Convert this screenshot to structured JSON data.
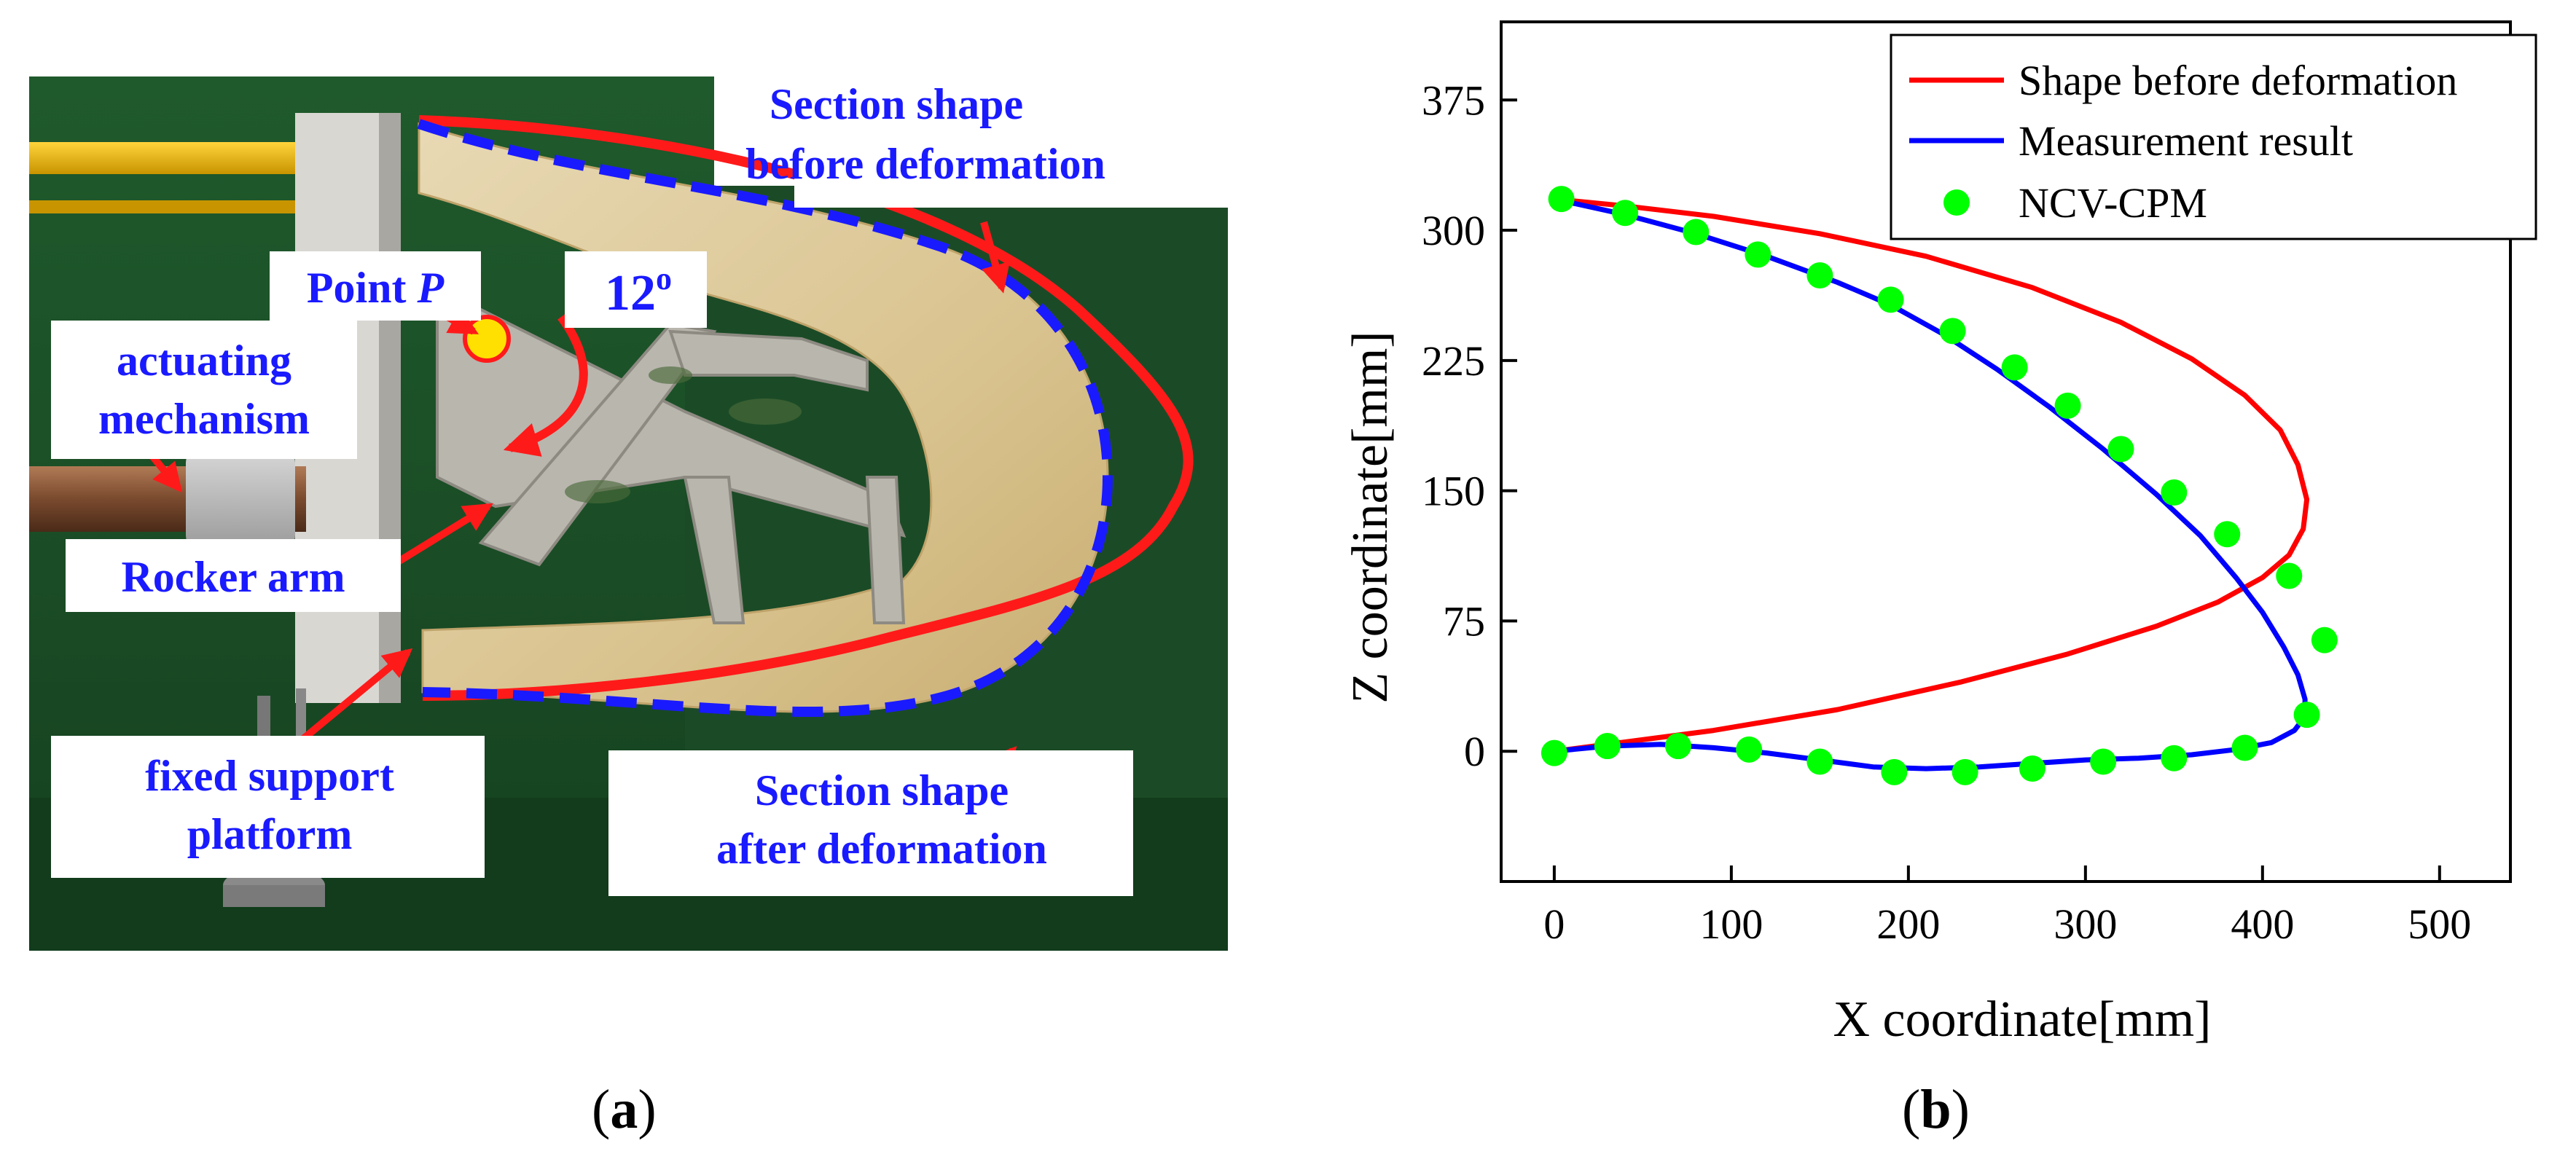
{
  "panel_a": {
    "labels": {
      "section_before": [
        "Section shape",
        "before deformation"
      ],
      "section_after": [
        "Section shape",
        "after deformation"
      ],
      "point_p_prefix": "Point ",
      "point_p_var": "P",
      "angle": "12",
      "angle_unit": "o",
      "actuating": [
        "actuating",
        "mechanism"
      ],
      "rocker": "Rocker arm",
      "fixed_support": [
        "fixed support",
        "platform"
      ]
    },
    "colors": {
      "label_text": "#1a1aff",
      "arrow": "#ff1a1a",
      "before_outline": "#ff1a1a",
      "after_outline": "#1a1aff",
      "point_fill": "#ffe000"
    }
  },
  "captions": {
    "a": "a",
    "b": "b"
  },
  "chart_data": {
    "type": "line",
    "xlabel": "X coordinate[mm]",
    "ylabel": "Z coordinate[mm]",
    "xlim": [
      -30,
      540
    ],
    "ylim": [
      -75,
      420
    ],
    "xticks": [
      0,
      100,
      200,
      300,
      400,
      500
    ],
    "yticks": [
      0,
      75,
      150,
      225,
      300,
      375
    ],
    "grid": false,
    "legend_position": "top-right",
    "series": [
      {
        "name": "Shape before deformation",
        "style": "line",
        "color": "#ff0000",
        "x": [
          0,
          40,
          90,
          150,
          210,
          270,
          320,
          360,
          390,
          410,
          420,
          425,
          423,
          415,
          400,
          375,
          340,
          290,
          230,
          160,
          90,
          30,
          0
        ],
        "z": [
          318,
          314,
          308,
          298,
          285,
          267,
          247,
          226,
          205,
          185,
          165,
          145,
          128,
          113,
          100,
          86,
          72,
          56,
          40,
          24,
          12,
          4,
          0
        ]
      },
      {
        "name": "Measurement result",
        "style": "line",
        "color": "#0000ff",
        "x": [
          0,
          40,
          80,
          120,
          160,
          190,
          220,
          250,
          280,
          310,
          340,
          365,
          385,
          400,
          412,
          420,
          424,
          424,
          418,
          405,
          385,
          360,
          330,
          300,
          270,
          240,
          210,
          180,
          150,
          120,
          90,
          60,
          30,
          0
        ],
        "z": [
          318,
          309,
          298,
          285,
          270,
          257,
          240,
          220,
          198,
          174,
          148,
          124,
          100,
          80,
          60,
          44,
          30,
          20,
          12,
          5,
          1,
          -2,
          -4,
          -5,
          -7,
          -9,
          -10,
          -9,
          -5,
          -1,
          2,
          4,
          3,
          0
        ]
      },
      {
        "name": "NCV-CPM",
        "style": "scatter",
        "color": "#00ff00",
        "x": [
          4,
          40,
          80,
          115,
          150,
          190,
          225,
          260,
          290,
          320,
          350,
          380,
          415,
          435,
          425,
          390,
          350,
          310,
          270,
          232,
          192,
          150,
          110,
          70,
          30,
          0
        ],
        "z": [
          318,
          310,
          299,
          286,
          274,
          260,
          242,
          221,
          199,
          174,
          149,
          125,
          101,
          64,
          21,
          2,
          -4,
          -6,
          -10,
          -12,
          -12,
          -6,
          1,
          3,
          3,
          -1
        ]
      }
    ]
  }
}
